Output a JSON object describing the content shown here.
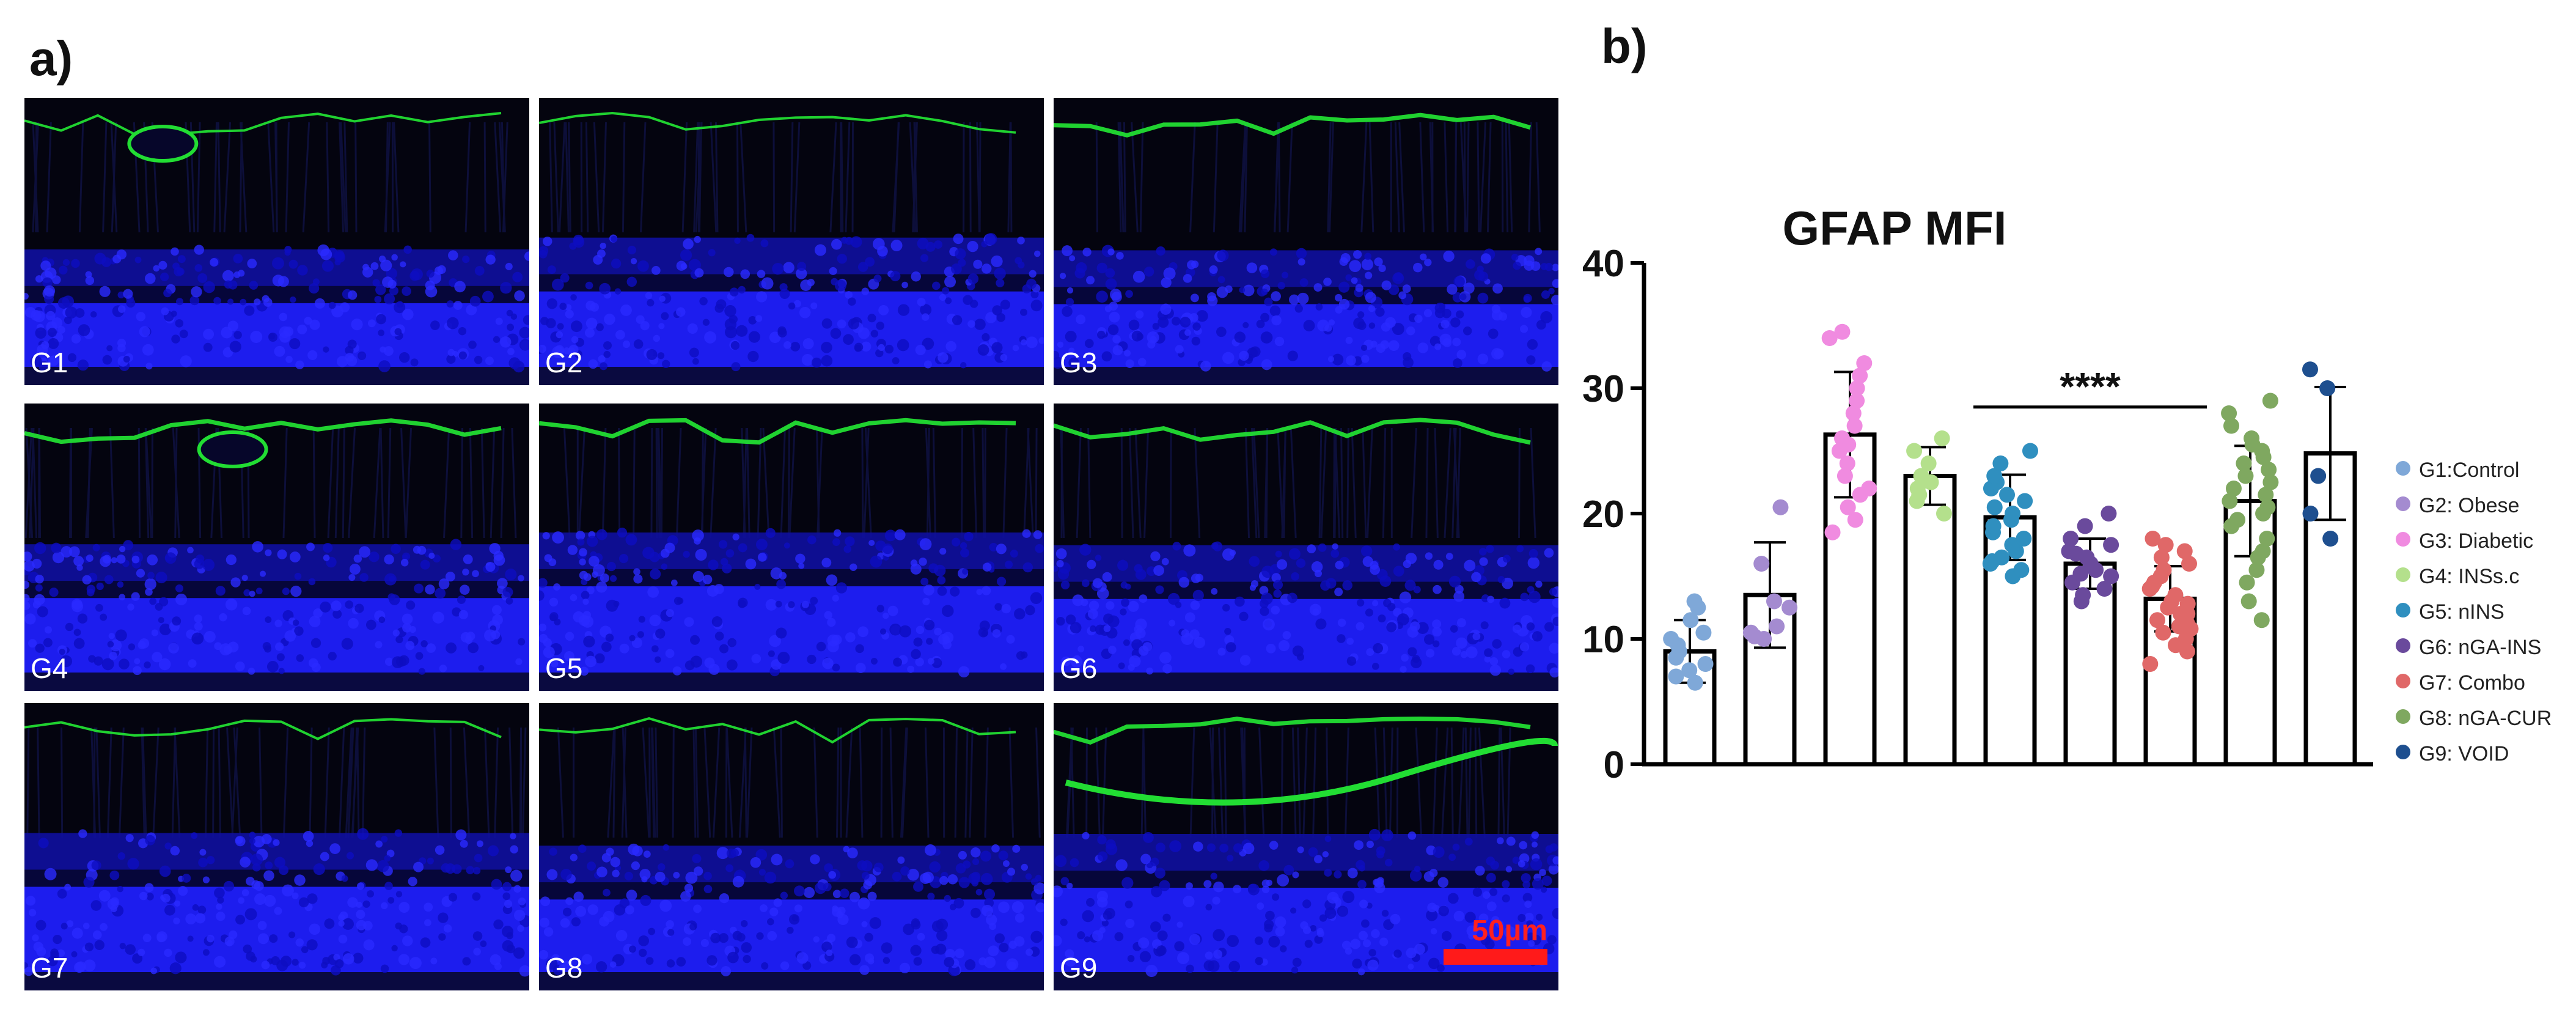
{
  "panel_a_label": "a)",
  "panel_b_label": "b)",
  "micrographs": [
    {
      "label": "G1"
    },
    {
      "label": "G2"
    },
    {
      "label": "G3"
    },
    {
      "label": "G4"
    },
    {
      "label": "G5"
    },
    {
      "label": "G6"
    },
    {
      "label": "G7"
    },
    {
      "label": "G8"
    },
    {
      "label": "G9"
    }
  ],
  "scale_bar_label": "50µm",
  "colors": {
    "nuclei": "#1a1aff",
    "gfap": "#22dd33",
    "scale": "#ff1a1a"
  },
  "chart_data": {
    "type": "bar",
    "title": "GFAP MFI",
    "xlabel": "",
    "ylabel": "",
    "ylim": [
      0,
      40
    ],
    "yticks": [
      0,
      10,
      20,
      30,
      40
    ],
    "grid": false,
    "legend_position": "right",
    "significance": {
      "text": "****",
      "from": "G5: nINS",
      "to": "G7: Combo"
    },
    "categories": [
      "G1:Control",
      "G2: Obese",
      "G3: Diabetic",
      "G4: INSs.c",
      "G5: nINS",
      "G6: nGA-INS",
      "G7: Combo",
      "G8: nGA-CUR",
      "G9: VOID"
    ],
    "series": [
      {
        "name": "G1:Control",
        "color": "#7fa8d8",
        "mean": 9.0,
        "sd": 2.5,
        "points": [
          6.5,
          7.5,
          8.0,
          8.5,
          9.0,
          9.5,
          10.0,
          10.5,
          11.5,
          12.5,
          13.0,
          7.0
        ]
      },
      {
        "name": "G2: Obese",
        "color": "#a48bd0",
        "mean": 13.5,
        "sd": 4.2,
        "points": [
          10.0,
          10.5,
          11.0,
          12.5,
          13.0,
          16.0,
          20.5,
          10.2
        ]
      },
      {
        "name": "G3: Diabetic",
        "color": "#f08be0",
        "mean": 26.3,
        "sd": 5.0,
        "points": [
          18.5,
          19.5,
          20.5,
          21.5,
          22.0,
          23.0,
          24.0,
          25.5,
          26.0,
          27.0,
          28.0,
          29.0,
          30.0,
          31.0,
          32.0,
          34.0,
          34.5,
          25.0
        ]
      },
      {
        "name": "G4: INSs.c",
        "color": "#b4e08c",
        "mean": 23.0,
        "sd": 2.3,
        "points": [
          20.0,
          21.0,
          21.5,
          22.5,
          23.0,
          24.0,
          25.0,
          26.0,
          22.0
        ]
      },
      {
        "name": "G5: nINS",
        "color": "#2f8fbf",
        "mean": 19.7,
        "sd": 3.4,
        "points": [
          15.0,
          15.5,
          16.0,
          16.5,
          17.0,
          17.5,
          18.0,
          18.5,
          19.0,
          19.5,
          20.0,
          20.5,
          21.0,
          21.5,
          22.0,
          22.5,
          23.0,
          24.0,
          25.0,
          16.2
        ]
      },
      {
        "name": "G6: nGA-INS",
        "color": "#6a4a9c",
        "mean": 16.0,
        "sd": 2.0,
        "points": [
          13.0,
          13.5,
          14.0,
          14.5,
          15.0,
          15.5,
          16.0,
          16.5,
          17.0,
          17.5,
          18.0,
          19.0,
          20.0,
          15.2,
          16.8
        ]
      },
      {
        "name": "G7: Combo",
        "color": "#e06868",
        "mean": 13.2,
        "sd": 2.6,
        "points": [
          8.0,
          9.0,
          9.5,
          10.0,
          10.5,
          11.0,
          11.5,
          12.0,
          12.0,
          12.5,
          13.0,
          13.5,
          14.0,
          14.5,
          15.0,
          15.5,
          16.0,
          16.5,
          17.0,
          17.5,
          18.0,
          12.8,
          11.2,
          14.2,
          10.8
        ]
      },
      {
        "name": "G8: nGA-CUR",
        "color": "#7fa860",
        "mean": 21.0,
        "sd": 4.4,
        "points": [
          11.5,
          13.0,
          14.5,
          15.5,
          16.5,
          17.0,
          18.0,
          19.0,
          20.0,
          20.5,
          21.0,
          21.5,
          22.0,
          22.5,
          23.0,
          23.5,
          24.0,
          24.5,
          25.0,
          25.5,
          26.0,
          27.0,
          28.0,
          29.0,
          19.5
        ]
      },
      {
        "name": "G9: VOID",
        "color": "#1e4f8f",
        "mean": 24.8,
        "sd": 5.3,
        "points": [
          18.0,
          20.0,
          23.0,
          30.0,
          31.5
        ]
      }
    ]
  }
}
